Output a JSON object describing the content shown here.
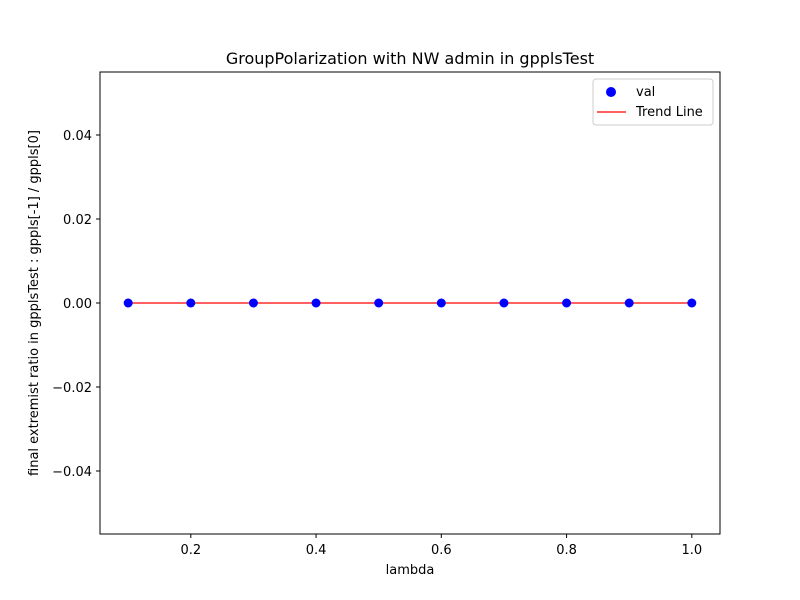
{
  "chart_data": {
    "type": "scatter",
    "title": "GroupPolarization with NW admin in gpplsTest",
    "xlabel": "lambda",
    "ylabel": "final extremist ratio in gpplsTest : gppls[-1] / gppls[0]",
    "xlim": [
      0.055,
      1.045
    ],
    "ylim": [
      -0.055,
      0.055
    ],
    "x_ticks": [
      0.2,
      0.4,
      0.6,
      0.8,
      1.0
    ],
    "x_tick_labels": [
      "0.2",
      "0.4",
      "0.6",
      "0.8",
      "1.0"
    ],
    "y_ticks": [
      -0.04,
      -0.02,
      0.0,
      0.02,
      0.04
    ],
    "y_tick_labels": [
      "−0.04",
      "−0.02",
      "0.00",
      "0.02",
      "0.04"
    ],
    "grid": false,
    "legend_position": "top-right",
    "series": [
      {
        "name": "val",
        "kind": "scatter",
        "color": "#0000ff",
        "x": [
          0.1,
          0.2,
          0.3,
          0.4,
          0.5,
          0.6,
          0.7,
          0.8,
          0.9,
          1.0
        ],
        "y": [
          0.0,
          0.0,
          0.0,
          0.0,
          0.0,
          0.0,
          0.0,
          0.0,
          0.0,
          0.0
        ]
      },
      {
        "name": "Trend Line",
        "kind": "line",
        "color": "#ff0000",
        "x": [
          0.1,
          1.0
        ],
        "y": [
          0.0,
          0.0
        ]
      }
    ]
  }
}
